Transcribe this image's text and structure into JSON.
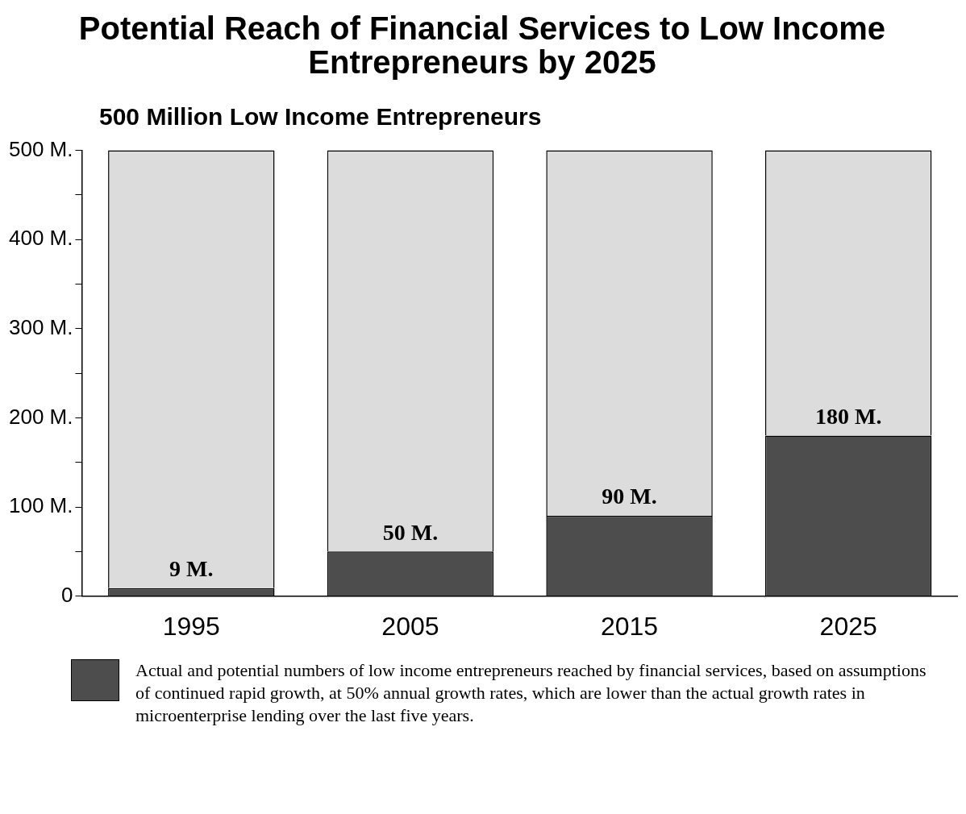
{
  "chart_data": {
    "type": "bar",
    "title": "Potential Reach of Financial Services to Low Income Entrepreneurs by 2025",
    "subtitle": "500 Million Low Income Entrepreneurs",
    "categories": [
      "1995",
      "2005",
      "2015",
      "2025"
    ],
    "stacked": true,
    "series": [
      {
        "name": "Actual and potential numbers of low income entrepreneurs reached by financial services, based on assumptions of continued rapid growth, at 50% annual growth rates, which are lower than the actual growth rates in microenterprise lending over the last five years.",
        "color": "#4d4d4d",
        "values": [
          9,
          50,
          90,
          180
        ],
        "value_labels": [
          "9 M.",
          "50 M.",
          "90 M.",
          "180 M."
        ]
      },
      {
        "color": "#dcdcdc",
        "values": [
          491,
          450,
          410,
          320
        ]
      }
    ],
    "ylim": [
      0,
      500
    ],
    "yticks": [
      {
        "value": 0,
        "label": "0"
      },
      {
        "value": 50,
        "label": null
      },
      {
        "value": 100,
        "label": "100 M."
      },
      {
        "value": 150,
        "label": null
      },
      {
        "value": 200,
        "label": "200 M."
      },
      {
        "value": 250,
        "label": null
      },
      {
        "value": 300,
        "label": "300 M."
      },
      {
        "value": 350,
        "label": null
      },
      {
        "value": 400,
        "label": "400 M."
      },
      {
        "value": 450,
        "label": null
      },
      {
        "value": 500,
        "label": "500 M."
      }
    ],
    "grid": false,
    "legend": "bottom"
  }
}
